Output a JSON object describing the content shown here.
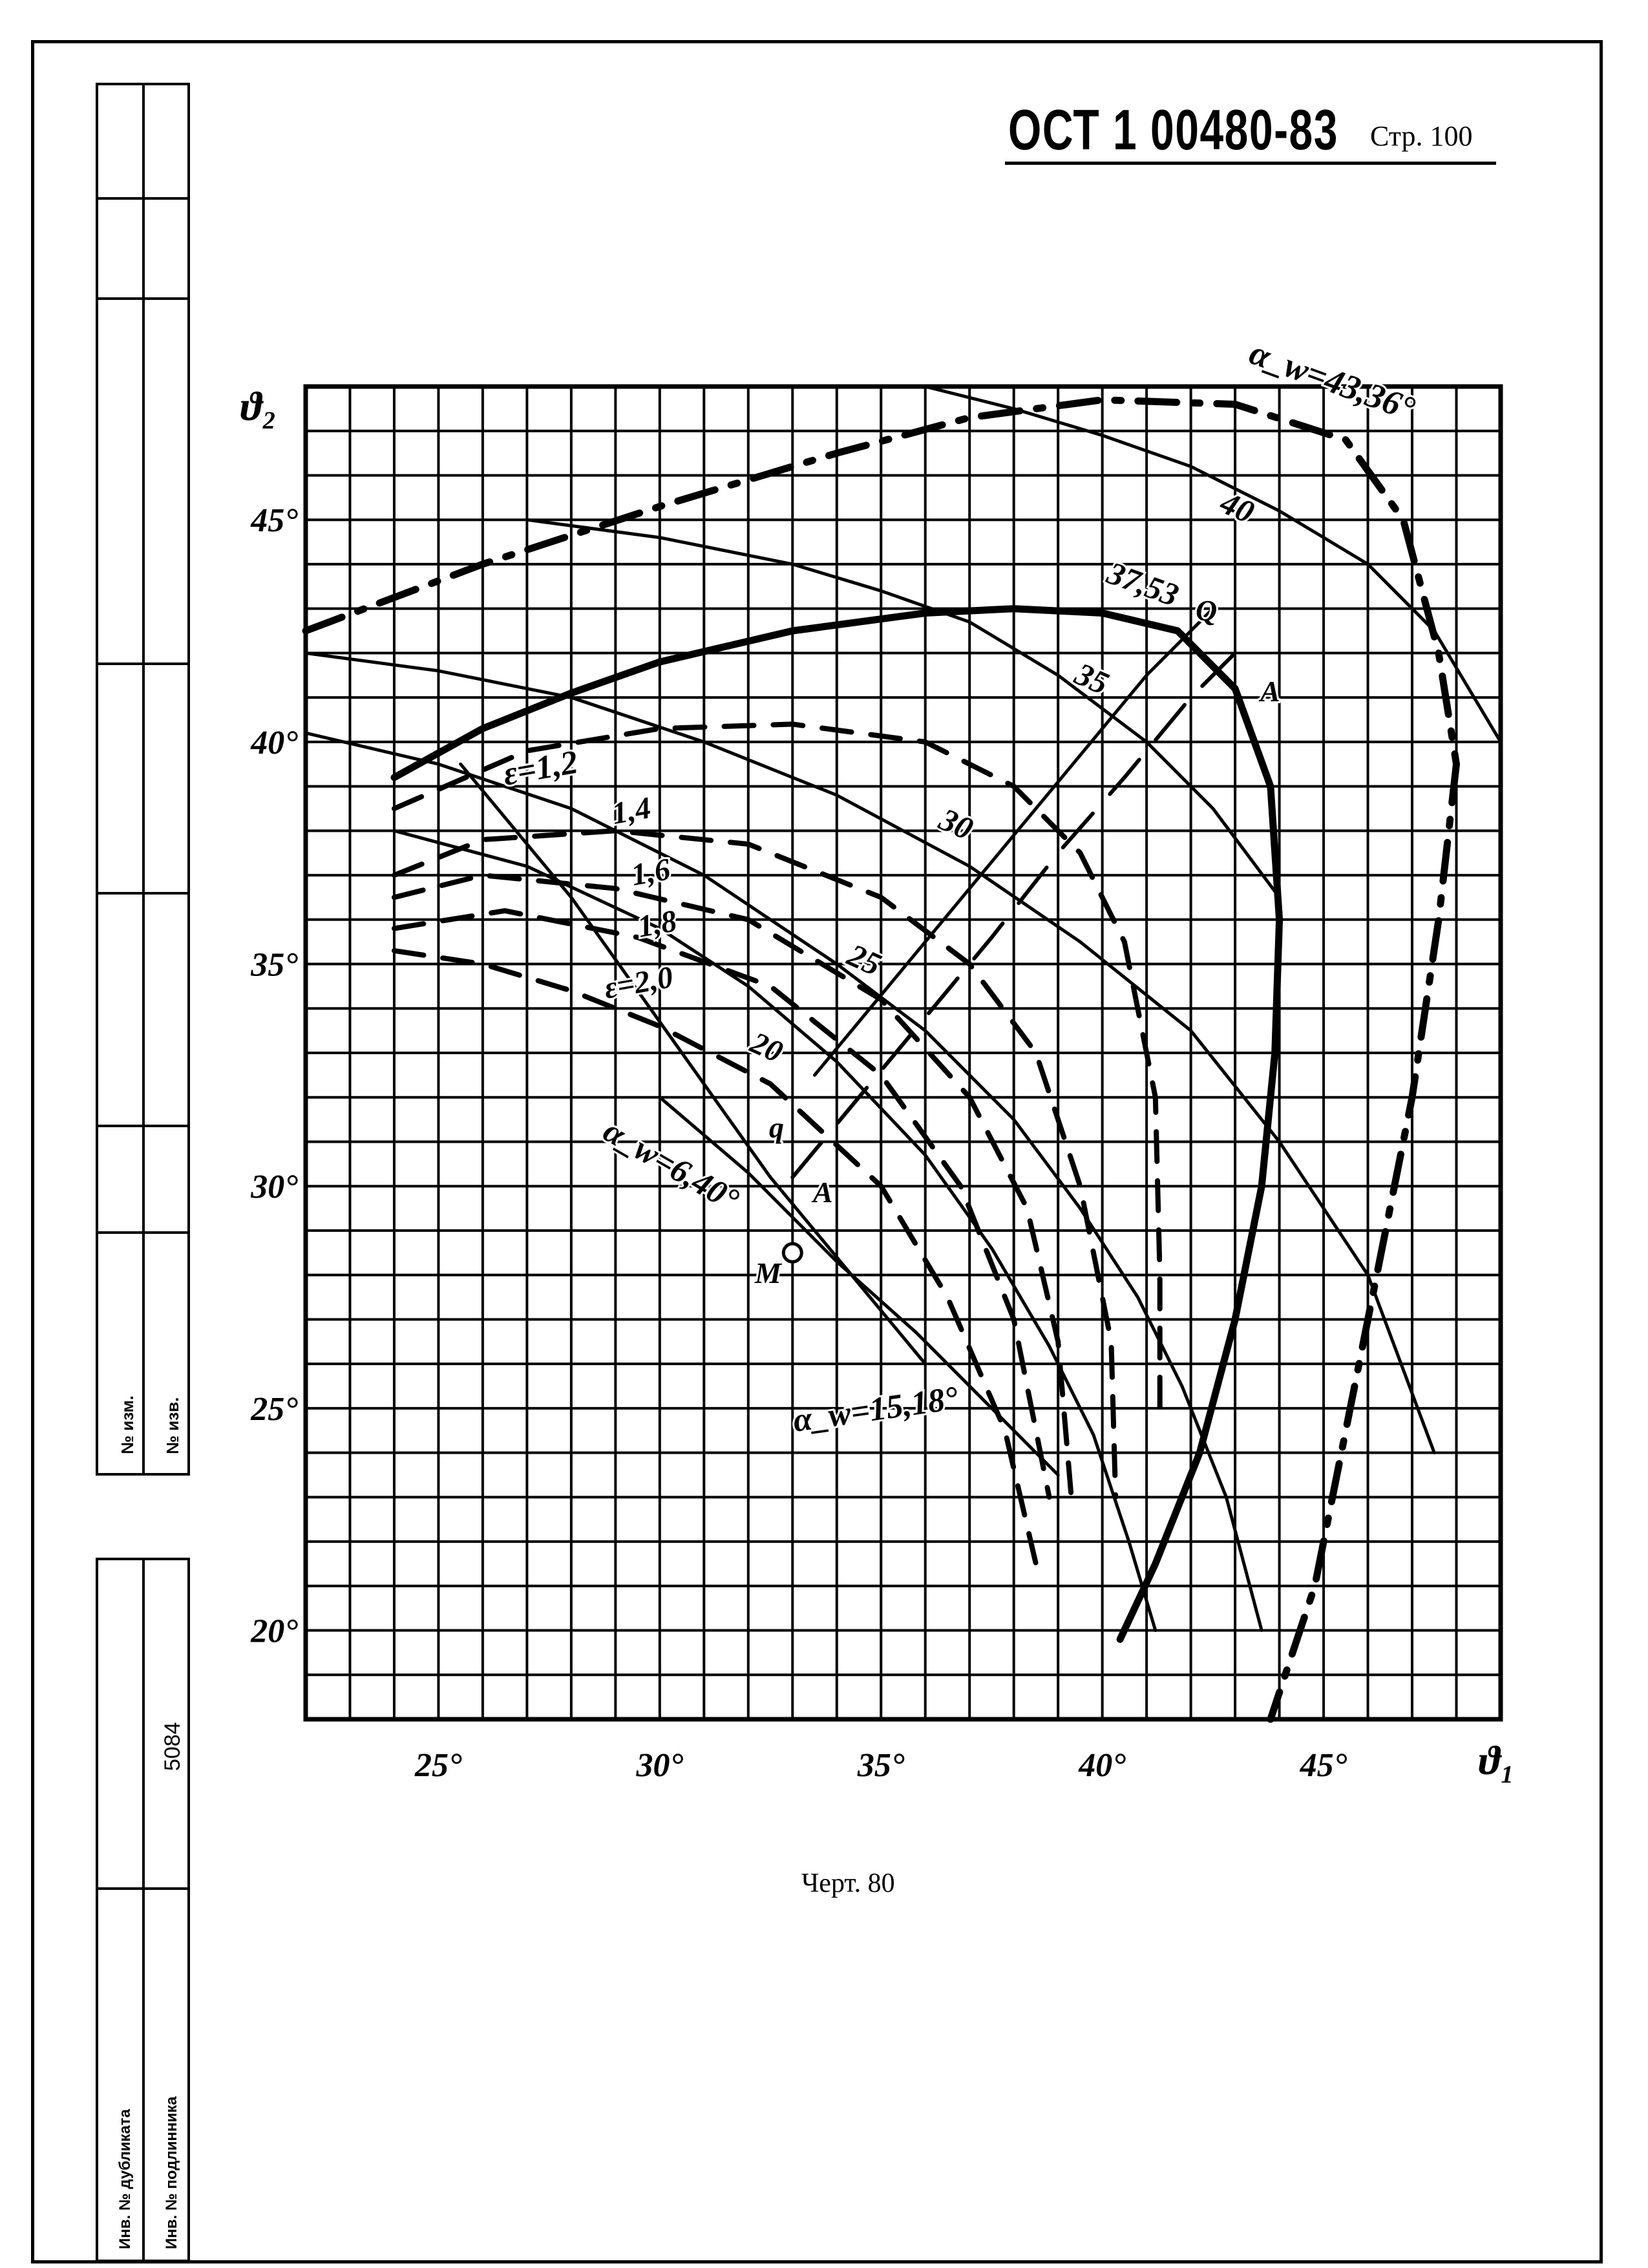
{
  "header": {
    "document_code": "ОСТ 1 00480-83",
    "page_label": "Стр. 100"
  },
  "stamp": {
    "change_no_1": "№ изм.",
    "change_no_2": "№ изв.",
    "inv_duplicate": "Инв. № дубликата",
    "inv_original": "Инв. № подлинника",
    "inv_number": "5084"
  },
  "caption": "Черт. 80",
  "chart_data": {
    "type": "line",
    "xlabel": "ϑ₁",
    "ylabel": "ϑ₂",
    "xlim": [
      22,
      49
    ],
    "ylim": [
      18,
      48
    ],
    "x_tick_labels": [
      "25°",
      "30°",
      "35°",
      "40°",
      "45°"
    ],
    "x_ticks": [
      25,
      30,
      35,
      40,
      45
    ],
    "y_tick_labels": [
      "20°",
      "25°",
      "30°",
      "35°",
      "40°",
      "45°"
    ],
    "y_ticks": [
      20,
      25,
      30,
      35,
      40,
      45
    ],
    "grid": true,
    "series": [
      {
        "name": "α_w=43,36°",
        "style": "thick-dashdot",
        "x": [
          22,
          26,
          30,
          34,
          37,
          40,
          43,
          45.5,
          46.8,
          47.6,
          48
        ],
        "y": [
          42.5,
          44,
          45.3,
          46.5,
          47.3,
          47.7,
          47.6,
          46.8,
          45,
          42,
          39.5
        ]
      },
      {
        "name": "α_w=43,36°",
        "style": "thick-dashdot",
        "x": [
          48,
          47.6,
          47,
          46.2,
          45.4,
          44.8,
          44.3,
          43.8
        ],
        "y": [
          39.5,
          36,
          32,
          28,
          24,
          21,
          19.5,
          18
        ]
      },
      {
        "name": "37,53",
        "style": "thick",
        "x": [
          24,
          26,
          28,
          30,
          33,
          36,
          38,
          40,
          41.7,
          43,
          43.8,
          44
        ],
        "y": [
          39.2,
          40.3,
          41.1,
          41.8,
          42.5,
          42.9,
          43,
          42.9,
          42.5,
          41.2,
          39,
          36
        ]
      },
      {
        "name": "37,53",
        "style": "thick",
        "x": [
          44,
          43.9,
          43.6,
          43,
          42.2,
          41.2,
          40.4
        ],
        "y": [
          36,
          33,
          30,
          27,
          24,
          21.5,
          19.8
        ]
      },
      {
        "name": "40",
        "style": "thin",
        "x": [
          36,
          38,
          40,
          42,
          44,
          46,
          47.5,
          49
        ],
        "y": [
          48,
          47.5,
          46.9,
          46.2,
          45.2,
          44,
          42.5,
          40
        ]
      },
      {
        "name": "35",
        "style": "thin",
        "x": [
          27,
          30,
          33,
          35,
          37,
          39,
          41,
          42.5,
          44
        ],
        "y": [
          45,
          44.6,
          44,
          43.4,
          42.7,
          41.5,
          40,
          38.5,
          36.5
        ]
      },
      {
        "name": "30",
        "style": "thin",
        "x": [
          22,
          25,
          28,
          31,
          34,
          37,
          39.5,
          42,
          44,
          46,
          47.5
        ],
        "y": [
          42,
          41.6,
          41,
          40,
          38.8,
          37.2,
          35.5,
          33.5,
          31,
          28,
          24
        ]
      },
      {
        "name": "25",
        "style": "thin",
        "x": [
          22,
          25,
          28,
          31,
          34,
          36,
          38,
          39.5,
          40.8,
          41.8,
          42.8,
          43.6
        ],
        "y": [
          40.2,
          39.5,
          38.5,
          37,
          35,
          33.5,
          31.5,
          29.5,
          27.5,
          25.5,
          23,
          20
        ]
      },
      {
        "name": "20",
        "style": "thin",
        "x": [
          24,
          27,
          30,
          32,
          34,
          36,
          37.5,
          38.8,
          39.8,
          40.6,
          41.2
        ],
        "y": [
          38,
          37.2,
          35.8,
          34.5,
          32.8,
          30.7,
          28.6,
          26.4,
          24.4,
          22,
          20
        ]
      },
      {
        "name": "ε=1,2",
        "style": "dashed",
        "x": [
          24,
          27,
          30,
          33,
          36,
          38,
          39.5,
          40.5,
          41.2,
          41.3,
          41.3
        ],
        "y": [
          38.5,
          39.8,
          40.3,
          40.4,
          40,
          39,
          37.5,
          35.5,
          32,
          28,
          25
        ]
      },
      {
        "name": "1,4",
        "style": "dashed",
        "x": [
          24,
          26,
          29,
          32,
          35,
          37,
          38.5,
          39.5,
          40.2,
          40.3
        ],
        "y": [
          37,
          37.8,
          38,
          37.7,
          36.5,
          35,
          33,
          30,
          26.5,
          23
        ]
      },
      {
        "name": "1,6",
        "style": "dashed",
        "x": [
          24,
          26,
          29,
          32,
          35,
          37,
          38.3,
          39,
          39.3
        ],
        "y": [
          36.5,
          37,
          36.7,
          36,
          34.2,
          32,
          29.5,
          26.5,
          23
        ]
      },
      {
        "name": "1,8",
        "style": "dashed",
        "x": [
          24,
          26.5,
          29.5,
          32.5,
          35,
          36.8,
          38,
          38.8
        ],
        "y": [
          35.8,
          36.2,
          35.6,
          34.5,
          32.5,
          30,
          27,
          23
        ]
      },
      {
        "name": "ε=2,0",
        "style": "dashed",
        "x": [
          24,
          26,
          28,
          30,
          32.5,
          35,
          36.5,
          37.8,
          38.5
        ],
        "y": [
          35.3,
          35,
          34.4,
          33.6,
          32.3,
          30,
          27.5,
          24.5,
          21.5
        ]
      },
      {
        "name": "q-A-Q",
        "style": "thin",
        "x": [
          33.5,
          35,
          36.5,
          38,
          39.5,
          41,
          42.5
        ],
        "y": [
          32.5,
          34.3,
          36.1,
          37.9,
          39.7,
          41.5,
          43
        ]
      },
      {
        "name": "A-A",
        "style": "long-dashed",
        "x": [
          33,
          34.5,
          36,
          37.5,
          39,
          40.5,
          42,
          43.2
        ],
        "y": [
          30.2,
          32,
          33.8,
          35.6,
          37.5,
          39.2,
          41,
          42.2
        ]
      },
      {
        "name": "α_w=6,40°",
        "style": "thin",
        "x": [
          25.5,
          28,
          30.5,
          32.5,
          34.5,
          36
        ],
        "y": [
          39.5,
          36.5,
          33,
          30.2,
          27.8,
          26
        ]
      },
      {
        "name": "α_w=15,18°",
        "style": "thin",
        "x": [
          30,
          32,
          34,
          35.8,
          37.5,
          39
        ],
        "y": [
          32,
          30.3,
          28.3,
          26.7,
          25,
          23.5
        ]
      }
    ],
    "annotations": [
      "α_w=43,36°",
      "40",
      "37,53",
      "35",
      "30",
      "25",
      "20",
      "ε=1,2",
      "1,4",
      "1,6",
      "1,8",
      "ε=2,0",
      "Q",
      "A",
      "q",
      "A",
      "M",
      "α_w=6,40°",
      "α_w=15,18°"
    ],
    "points": [
      {
        "label": "M",
        "x": 33,
        "y": 28.5
      },
      {
        "label": "q",
        "x": 33.5,
        "y": 32.3
      },
      {
        "label": "A",
        "x": 33.8,
        "y": 30.1
      },
      {
        "label": "Q",
        "x": 42.1,
        "y": 42.2
      },
      {
        "label": "A",
        "x": 43.4,
        "y": 41.1
      }
    ]
  }
}
